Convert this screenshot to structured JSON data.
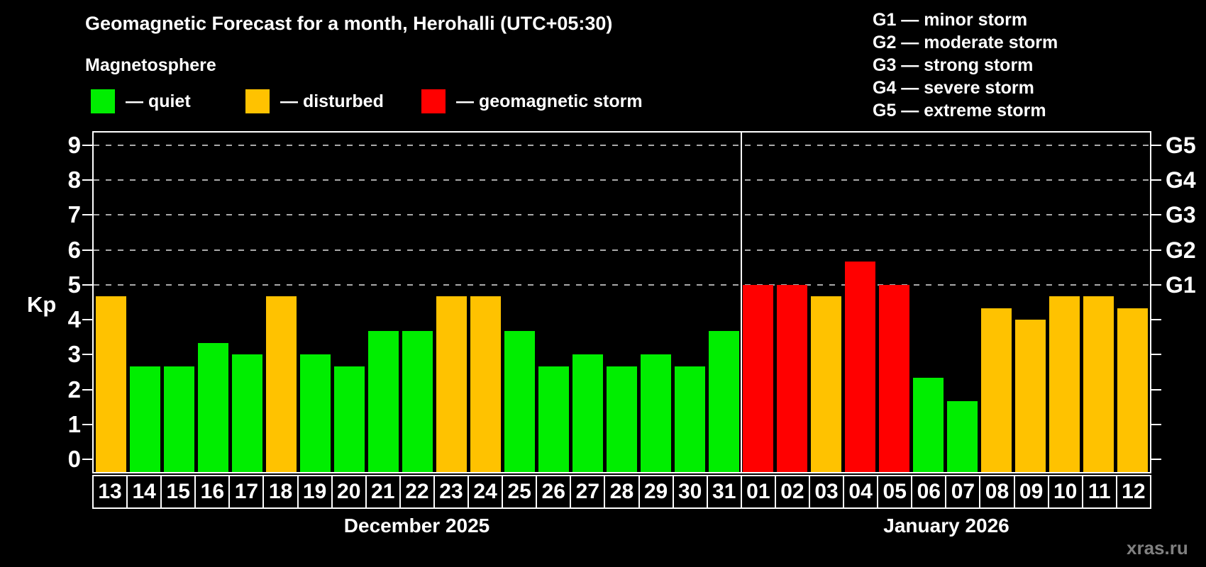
{
  "title": "Geomagnetic Forecast for a month, Herohalli (UTC+05:30)",
  "subtitle": "Magnetosphere",
  "legend": {
    "items": [
      {
        "label": "— quiet",
        "status": "quiet"
      },
      {
        "label": "— disturbed",
        "status": "disturbed"
      },
      {
        "label": "— geomagnetic storm",
        "status": "storm"
      }
    ]
  },
  "g_scale_legend": [
    "G1 — minor storm",
    "G2 — moderate storm",
    "G3 — strong storm",
    "G4 — severe storm",
    "G5 — extreme storm"
  ],
  "watermark": "xras.ru",
  "chart_data": {
    "type": "bar",
    "title": "Geomagnetic Forecast for a month, Herohalli (UTC+05:30)",
    "ylabel": "Kp",
    "ylim": [
      -0.36,
      9.36
    ],
    "yticks": [
      0,
      1,
      2,
      3,
      4,
      5,
      6,
      7,
      8,
      9
    ],
    "gridline_levels": [
      5,
      6,
      7,
      8,
      9
    ],
    "grid": "dashed, only at Kp 5-9",
    "legend_position": "top",
    "right_axis": [
      {
        "kp": 5,
        "label": "G1"
      },
      {
        "kp": 6,
        "label": "G2"
      },
      {
        "kp": 7,
        "label": "G3"
      },
      {
        "kp": 8,
        "label": "G4"
      },
      {
        "kp": 9,
        "label": "G5"
      }
    ],
    "colors": {
      "quiet": "#00ee00",
      "disturbed": "#ffc200",
      "storm": "#ff0000",
      "background": "#000000",
      "frame": "#ffffff",
      "gridline": "#aaaaaa",
      "watermark": "#808080"
    },
    "months": [
      {
        "label": "December 2025",
        "days": [
          {
            "day": "13",
            "kp": 4.67,
            "status": "disturbed"
          },
          {
            "day": "14",
            "kp": 2.67,
            "status": "quiet"
          },
          {
            "day": "15",
            "kp": 2.67,
            "status": "quiet"
          },
          {
            "day": "16",
            "kp": 3.33,
            "status": "quiet"
          },
          {
            "day": "17",
            "kp": 3.0,
            "status": "quiet"
          },
          {
            "day": "18",
            "kp": 4.67,
            "status": "disturbed"
          },
          {
            "day": "19",
            "kp": 3.0,
            "status": "quiet"
          },
          {
            "day": "20",
            "kp": 2.67,
            "status": "quiet"
          },
          {
            "day": "21",
            "kp": 3.67,
            "status": "quiet"
          },
          {
            "day": "22",
            "kp": 3.67,
            "status": "quiet"
          },
          {
            "day": "23",
            "kp": 4.67,
            "status": "disturbed"
          },
          {
            "day": "24",
            "kp": 4.67,
            "status": "disturbed"
          },
          {
            "day": "25",
            "kp": 3.67,
            "status": "quiet"
          },
          {
            "day": "26",
            "kp": 2.67,
            "status": "quiet"
          },
          {
            "day": "27",
            "kp": 3.0,
            "status": "quiet"
          },
          {
            "day": "28",
            "kp": 2.67,
            "status": "quiet"
          },
          {
            "day": "29",
            "kp": 3.0,
            "status": "quiet"
          },
          {
            "day": "30",
            "kp": 2.67,
            "status": "quiet"
          },
          {
            "day": "31",
            "kp": 3.67,
            "status": "quiet"
          }
        ]
      },
      {
        "label": "January 2026",
        "days": [
          {
            "day": "01",
            "kp": 5.0,
            "status": "storm"
          },
          {
            "day": "02",
            "kp": 5.0,
            "status": "storm"
          },
          {
            "day": "03",
            "kp": 4.67,
            "status": "disturbed"
          },
          {
            "day": "04",
            "kp": 5.67,
            "status": "storm"
          },
          {
            "day": "05",
            "kp": 5.0,
            "status": "storm"
          },
          {
            "day": "06",
            "kp": 2.33,
            "status": "quiet"
          },
          {
            "day": "07",
            "kp": 1.67,
            "status": "quiet"
          },
          {
            "day": "08",
            "kp": 4.33,
            "status": "disturbed"
          },
          {
            "day": "09",
            "kp": 4.0,
            "status": "disturbed"
          },
          {
            "day": "10",
            "kp": 4.67,
            "status": "disturbed"
          },
          {
            "day": "11",
            "kp": 4.67,
            "status": "disturbed"
          },
          {
            "day": "12",
            "kp": 4.33,
            "status": "disturbed"
          }
        ]
      }
    ]
  }
}
